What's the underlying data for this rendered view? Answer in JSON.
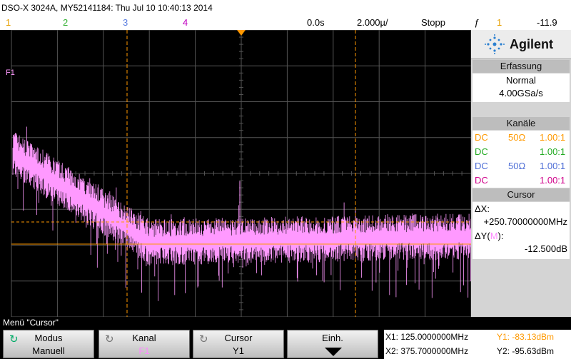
{
  "header": {
    "title": "DSO-X 3024A, MY52141184: Thu Jul 10 10:40:13 2014",
    "channels": [
      "1",
      "2",
      "3",
      "4"
    ],
    "channel_colors": [
      "#e69f00",
      "#33b033",
      "#5c7fe0",
      "#c000c0"
    ],
    "time_pos": "0.0s",
    "time_div": "2.000µ/",
    "run_state": "Stopp",
    "trigger_symbol": "ƒ",
    "trigger_channel": "1",
    "trigger_level": "-11.9"
  },
  "screen": {
    "math_marker": "F1",
    "math_color": "#ff99ff",
    "cursor_color": "#ff9900"
  },
  "panel": {
    "brand": "Agilent",
    "acquire": {
      "header": "Erfassung",
      "mode": "Normal",
      "rate": "4.00GSa/s"
    },
    "channels": {
      "header": "Kanäle",
      "rows": [
        {
          "coupling": "DC",
          "impedance": "50Ω",
          "probe": "1.00:1",
          "color": "#ff9900"
        },
        {
          "coupling": "DC",
          "impedance": "",
          "probe": "1.00:1",
          "color": "#22aa22"
        },
        {
          "coupling": "DC",
          "impedance": "50Ω",
          "probe": "1.00:1",
          "color": "#4d6dd6"
        },
        {
          "coupling": "DC",
          "impedance": "",
          "probe": "1.00:1",
          "color": "#d0008a"
        }
      ]
    },
    "cursor": {
      "header": "Cursor",
      "dx_label": "ΔX:",
      "dx_value": "+250.70000000MHz",
      "dy_label": "ΔY(",
      "dy_sub": "M",
      "dy_close": "):",
      "dy_value": "-12.500dB"
    }
  },
  "softkeys": {
    "menu_title": "Menü \"Cursor\"",
    "modus": {
      "title": "Modus",
      "value": "Manuell"
    },
    "kanal": {
      "title": "Kanal",
      "value": "F1"
    },
    "cursor": {
      "title": "Cursor",
      "value": "Y1"
    },
    "einh": {
      "title": "Einh."
    }
  },
  "cursor_info": {
    "x1": "X1: 125.0000000MHz",
    "y1": "Y1: -83.13dBm",
    "x2": "X2: 375.7000000MHz",
    "y2": "Y2: -95.63dBm"
  }
}
